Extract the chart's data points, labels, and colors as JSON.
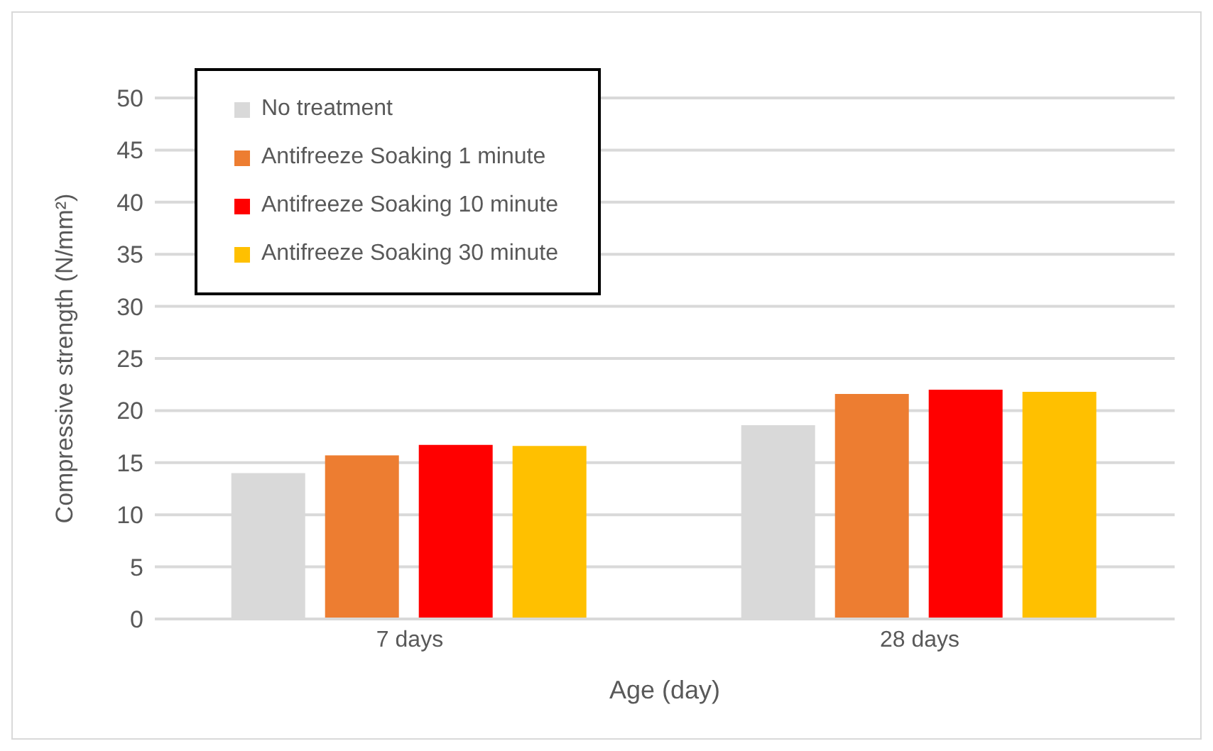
{
  "chart_data": {
    "type": "bar",
    "xlabel": "Age (day)",
    "ylabel": "Compressive strength (N/mm²)",
    "categories": [
      "7 days",
      "28 days"
    ],
    "series": [
      {
        "name": "No treatment",
        "color": "#d9d9d9",
        "values": [
          14.0,
          18.6
        ]
      },
      {
        "name": "Antifreeze Soaking 1 minute",
        "color": "#ed7d31",
        "values": [
          15.7,
          21.6
        ]
      },
      {
        "name": "Antifreeze Soaking 10 minute",
        "color": "#ff0000",
        "values": [
          16.7,
          22.0
        ]
      },
      {
        "name": "Antifreeze Soaking 30 minute",
        "color": "#ffc000",
        "values": [
          16.6,
          21.8
        ]
      }
    ],
    "ylim": [
      0,
      50
    ],
    "yticks": [
      0,
      5,
      10,
      15,
      20,
      25,
      30,
      35,
      40,
      45,
      50
    ],
    "grid": "y",
    "legend": "top left"
  }
}
